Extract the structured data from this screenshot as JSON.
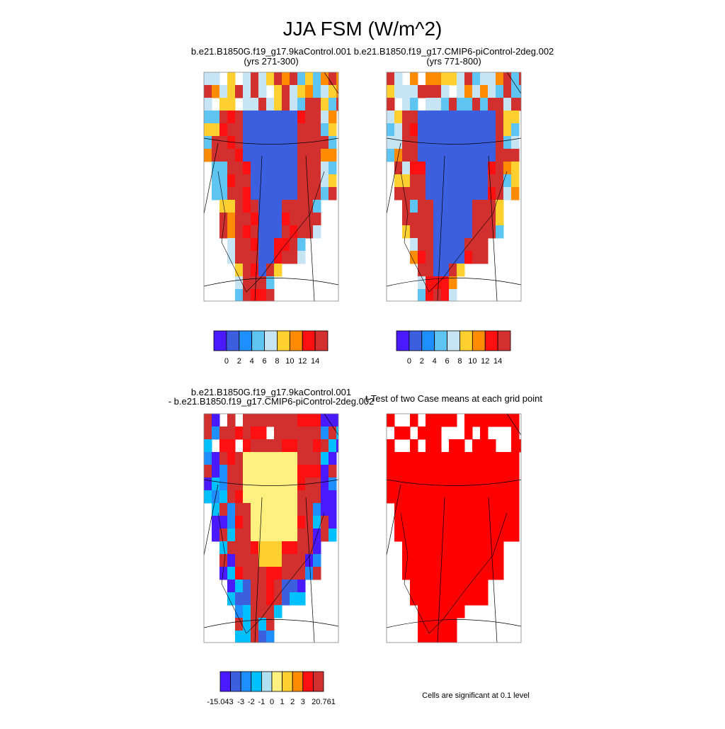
{
  "title": "JJA FSM (W/m^2)",
  "panels": [
    {
      "title_lines": [
        "b.e21.B1850G.f19_g17.9kaControl.001",
        "(yrs 271-300)"
      ]
    },
    {
      "title_lines": [
        "b.e21.B1850.f19_g17.CMIP6-piControl-2deg.002",
        "(yrs 771-800)"
      ]
    },
    {
      "title_lines": [
        "b.e21.B1850G.f19_g17.9kaControl.001",
        "- b.e21.B1850.f19_g17.CMIP6-piControl-2deg.002"
      ]
    },
    {
      "title_lines": [
        "t-Test of two Case means at each grid point"
      ]
    }
  ],
  "colorbars": [
    {
      "colors": [
        "#4a1aff",
        "#3c5fe0",
        "#1f8fff",
        "#5ec4f2",
        "#c6e4f4",
        "#ffd030",
        "#ff8c00",
        "#ff1010",
        "#d22f2f"
      ],
      "labels": [
        "0",
        "2",
        "4",
        "6",
        "8",
        "10",
        "12",
        "14"
      ]
    },
    {
      "colors": [
        "#4a1aff",
        "#3c5fe0",
        "#1f8fff",
        "#5ec4f2",
        "#c6e4f4",
        "#ffd030",
        "#ff8c00",
        "#ff1010",
        "#d22f2f"
      ],
      "labels": [
        "0",
        "2",
        "4",
        "6",
        "8",
        "10",
        "12",
        "14"
      ]
    },
    {
      "colors": [
        "#4a1aff",
        "#3c5fe0",
        "#1f8fff",
        "#00c0ff",
        "#b0e0f0",
        "#fff080",
        "#ffd030",
        "#ff8c00",
        "#ff1010",
        "#d22f2f"
      ],
      "labels": [
        "-15.043",
        "-3",
        "-2",
        "-1",
        "0",
        "1",
        "2",
        "3",
        "20.761"
      ]
    }
  ],
  "note": "Cells are significant at 0.1 level"
}
